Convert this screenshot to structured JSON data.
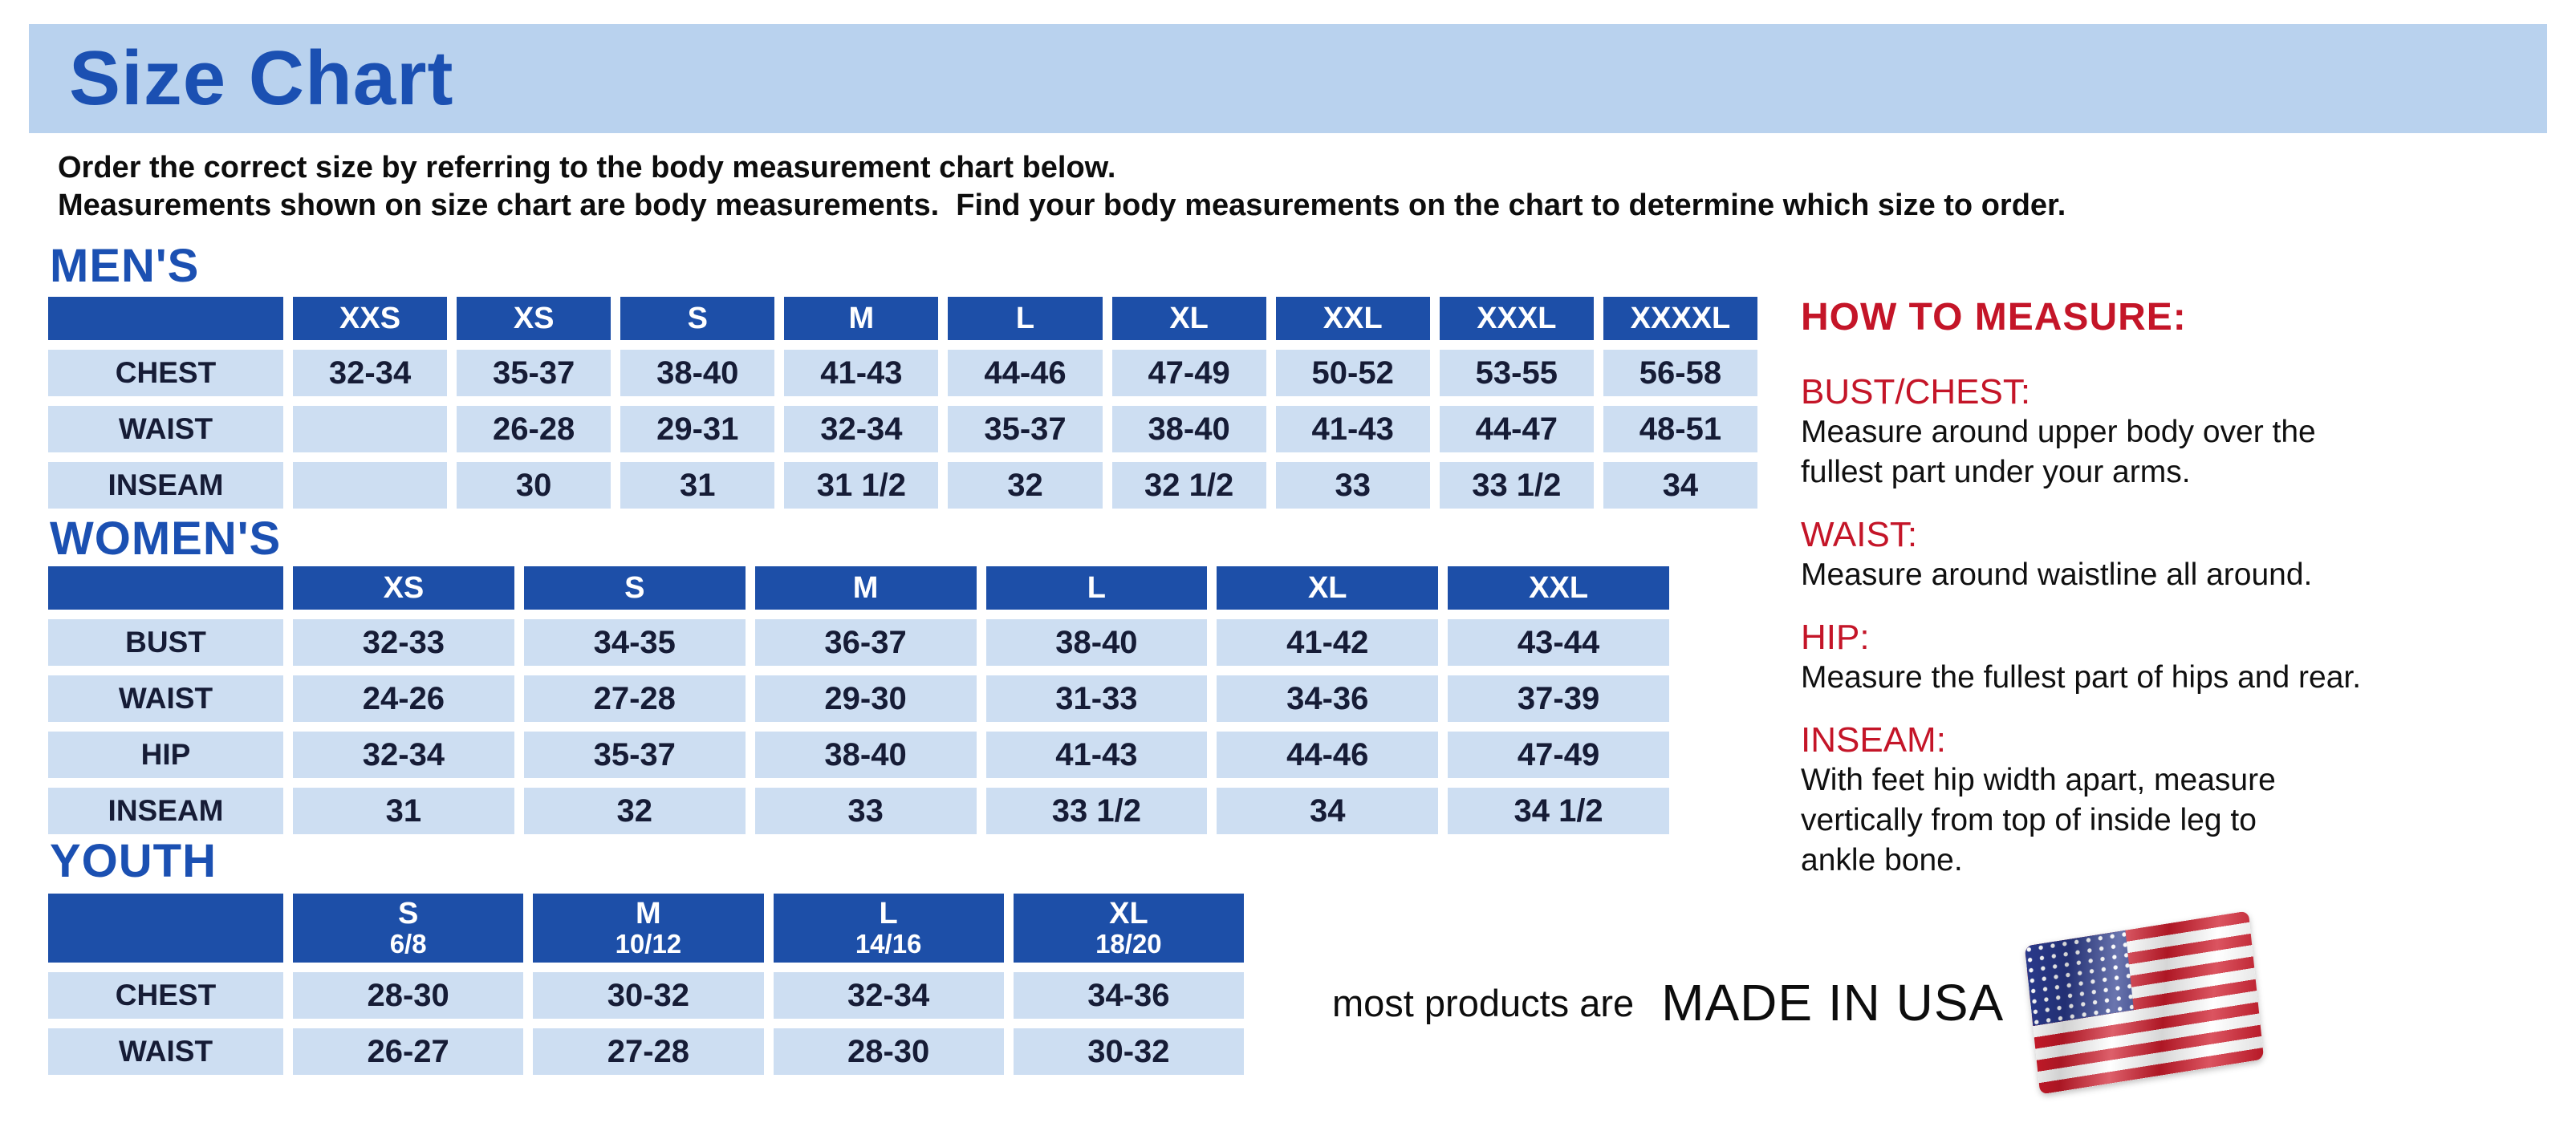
{
  "banner": {
    "title": "Size Chart"
  },
  "intro": {
    "line1": "Order the correct size by referring to the body measurement chart below.",
    "line2": "Measurements shown on size chart are body measurements.  Find your body measurements on the chart to determine which size to order."
  },
  "tables": {
    "mens": {
      "section_title": "MEN'S",
      "columns": [
        {
          "size": "XXS"
        },
        {
          "size": "XS"
        },
        {
          "size": "S"
        },
        {
          "size": "M"
        },
        {
          "size": "L"
        },
        {
          "size": "XL"
        },
        {
          "size": "XXL"
        },
        {
          "size": "XXXL"
        },
        {
          "size": "XXXXL"
        }
      ],
      "rows": [
        {
          "label": "CHEST",
          "values": [
            "32-34",
            "35-37",
            "38-40",
            "41-43",
            "44-46",
            "47-49",
            "50-52",
            "53-55",
            "56-58"
          ]
        },
        {
          "label": "WAIST",
          "values": [
            "",
            "26-28",
            "29-31",
            "32-34",
            "35-37",
            "38-40",
            "41-43",
            "44-47",
            "48-51"
          ]
        },
        {
          "label": "INSEAM",
          "values": [
            "",
            "30",
            "31",
            "31 1/2",
            "32",
            "32 1/2",
            "33",
            "33 1/2",
            "34"
          ]
        }
      ]
    },
    "womens": {
      "section_title": "WOMEN'S",
      "columns": [
        {
          "size": "XS"
        },
        {
          "size": "S"
        },
        {
          "size": "M"
        },
        {
          "size": "L"
        },
        {
          "size": "XL"
        },
        {
          "size": "XXL"
        }
      ],
      "rows": [
        {
          "label": "BUST",
          "values": [
            "32-33",
            "34-35",
            "36-37",
            "38-40",
            "41-42",
            "43-44"
          ]
        },
        {
          "label": "WAIST",
          "values": [
            "24-26",
            "27-28",
            "29-30",
            "31-33",
            "34-36",
            "37-39"
          ]
        },
        {
          "label": "HIP",
          "values": [
            "32-34",
            "35-37",
            "38-40",
            "41-43",
            "44-46",
            "47-49"
          ]
        },
        {
          "label": "INSEAM",
          "values": [
            "31",
            "32",
            "33",
            "33 1/2",
            "34",
            "34 1/2"
          ]
        }
      ]
    },
    "youth": {
      "section_title": "YOUTH",
      "columns": [
        {
          "size": "S",
          "detail": "6/8"
        },
        {
          "size": "M",
          "detail": "10/12"
        },
        {
          "size": "L",
          "detail": "14/16"
        },
        {
          "size": "XL",
          "detail": "18/20"
        }
      ],
      "rows": [
        {
          "label": "CHEST",
          "values": [
            "28-30",
            "30-32",
            "32-34",
            "34-36"
          ]
        },
        {
          "label": "WAIST",
          "values": [
            "26-27",
            "27-28",
            "28-30",
            "30-32"
          ]
        }
      ]
    }
  },
  "how_to_measure": {
    "title": "HOW TO MEASURE:",
    "items": [
      {
        "heading": "BUST/CHEST:",
        "lines": [
          "Measure around upper body over the",
          "fullest part under your arms."
        ]
      },
      {
        "heading": "WAIST:",
        "lines": [
          "Measure around waistline all around."
        ]
      },
      {
        "heading": "HIP:",
        "lines": [
          "Measure the fullest part of hips and rear."
        ]
      },
      {
        "heading": "INSEAM:",
        "lines": [
          "With feet hip width apart, measure",
          "vertically from top of inside leg to",
          "ankle bone."
        ]
      }
    ]
  },
  "footer": {
    "prefix": "most products are",
    "emphasis": "MADE IN USA",
    "flag_icon": "usa-flag-icon"
  },
  "colors": {
    "banner_bg": "#b9d2ee",
    "heading_blue": "#1b50b2",
    "table_header_bg": "#1d4fa8",
    "cell_bg": "#cddef2",
    "accent_red": "#c41528",
    "text_dark": "#161c36",
    "flag_red": "#cf1b2b",
    "flag_blue": "#2a3a8c"
  }
}
